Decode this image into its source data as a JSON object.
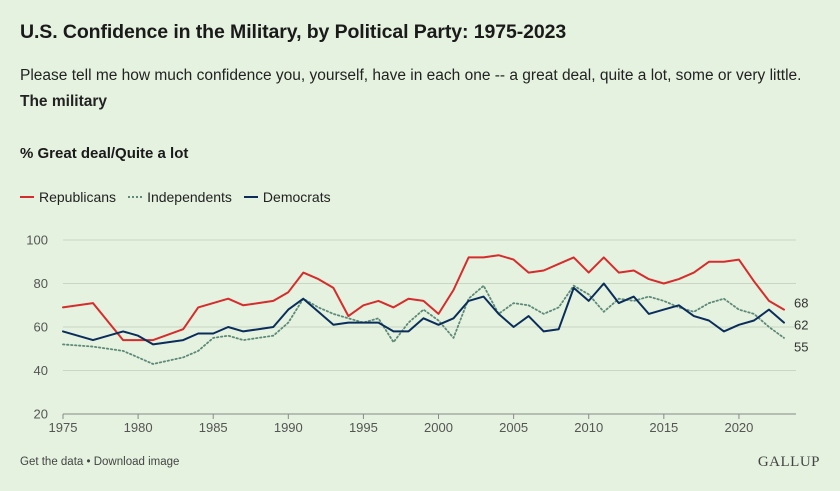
{
  "title": "U.S. Confidence in the Military, by Political Party: 1975-2023",
  "subtitle": "Please tell me how much confidence you, yourself, have in each one -- a great deal, quite a lot, some or very little.",
  "subtitle_bold": "The military",
  "measure_label": "% Great deal/Quite a lot",
  "footer": {
    "get_data": "Get the data",
    "separator": "•",
    "download": "Download image",
    "brand": "GALLUP"
  },
  "chart_data": {
    "type": "line",
    "title": "U.S. Confidence in the Military, by Political Party: 1975-2023",
    "ylabel": "% Great deal/Quite a lot",
    "xlabel": "",
    "xlim": [
      1975,
      2023
    ],
    "ylim": [
      20,
      100
    ],
    "x_ticks": [
      1975,
      1980,
      1985,
      1990,
      1995,
      2000,
      2005,
      2010,
      2015,
      2020
    ],
    "y_ticks": [
      20,
      40,
      60,
      80,
      100
    ],
    "grid": "horizontal",
    "legend_position": "top-left",
    "series": [
      {
        "name": "Republicans",
        "color": "#d62c2c",
        "style": "solid",
        "end_label": "68",
        "points": [
          [
            1975,
            69
          ],
          [
            1977,
            71
          ],
          [
            1979,
            54
          ],
          [
            1980,
            54
          ],
          [
            1981,
            54
          ],
          [
            1983,
            59
          ],
          [
            1984,
            69
          ],
          [
            1985,
            71
          ],
          [
            1986,
            73
          ],
          [
            1987,
            70
          ],
          [
            1988,
            71
          ],
          [
            1989,
            72
          ],
          [
            1990,
            76
          ],
          [
            1991,
            85
          ],
          [
            1992,
            82
          ],
          [
            1993,
            78
          ],
          [
            1994,
            65
          ],
          [
            1995,
            70
          ],
          [
            1996,
            72
          ],
          [
            1997,
            69
          ],
          [
            1998,
            73
          ],
          [
            1999,
            72
          ],
          [
            2000,
            66
          ],
          [
            2001,
            77
          ],
          [
            2002,
            92
          ],
          [
            2003,
            92
          ],
          [
            2004,
            93
          ],
          [
            2005,
            91
          ],
          [
            2006,
            85
          ],
          [
            2007,
            86
          ],
          [
            2008,
            89
          ],
          [
            2009,
            92
          ],
          [
            2010,
            85
          ],
          [
            2011,
            92
          ],
          [
            2012,
            85
          ],
          [
            2013,
            86
          ],
          [
            2014,
            82
          ],
          [
            2015,
            80
          ],
          [
            2016,
            82
          ],
          [
            2017,
            85
          ],
          [
            2018,
            90
          ],
          [
            2019,
            90
          ],
          [
            2020,
            91
          ],
          [
            2021,
            81
          ],
          [
            2022,
            72
          ],
          [
            2023,
            68
          ]
        ]
      },
      {
        "name": "Independents",
        "color": "#5e8a7a",
        "style": "dotted",
        "end_label": "55",
        "points": [
          [
            1975,
            52
          ],
          [
            1977,
            51
          ],
          [
            1979,
            49
          ],
          [
            1980,
            46
          ],
          [
            1981,
            43
          ],
          [
            1983,
            46
          ],
          [
            1984,
            49
          ],
          [
            1985,
            55
          ],
          [
            1986,
            56
          ],
          [
            1987,
            54
          ],
          [
            1988,
            55
          ],
          [
            1989,
            56
          ],
          [
            1990,
            62
          ],
          [
            1991,
            73
          ],
          [
            1992,
            69
          ],
          [
            1993,
            66
          ],
          [
            1994,
            64
          ],
          [
            1995,
            62
          ],
          [
            1996,
            64
          ],
          [
            1997,
            53
          ],
          [
            1998,
            62
          ],
          [
            1999,
            68
          ],
          [
            2000,
            63
          ],
          [
            2001,
            55
          ],
          [
            2002,
            73
          ],
          [
            2003,
            79
          ],
          [
            2004,
            66
          ],
          [
            2005,
            71
          ],
          [
            2006,
            70
          ],
          [
            2007,
            66
          ],
          [
            2008,
            69
          ],
          [
            2009,
            79
          ],
          [
            2010,
            75
          ],
          [
            2011,
            67
          ],
          [
            2012,
            73
          ],
          [
            2013,
            72
          ],
          [
            2014,
            74
          ],
          [
            2015,
            72
          ],
          [
            2016,
            69
          ],
          [
            2017,
            67
          ],
          [
            2018,
            71
          ],
          [
            2019,
            73
          ],
          [
            2020,
            68
          ],
          [
            2021,
            66
          ],
          [
            2022,
            60
          ],
          [
            2023,
            55
          ]
        ]
      },
      {
        "name": "Democrats",
        "color": "#0b2d5b",
        "style": "solid",
        "end_label": "62",
        "points": [
          [
            1975,
            58
          ],
          [
            1977,
            54
          ],
          [
            1979,
            58
          ],
          [
            1980,
            56
          ],
          [
            1981,
            52
          ],
          [
            1983,
            54
          ],
          [
            1984,
            57
          ],
          [
            1985,
            57
          ],
          [
            1986,
            60
          ],
          [
            1987,
            58
          ],
          [
            1988,
            59
          ],
          [
            1989,
            60
          ],
          [
            1990,
            68
          ],
          [
            1991,
            73
          ],
          [
            1992,
            67
          ],
          [
            1993,
            61
          ],
          [
            1994,
            62
          ],
          [
            1995,
            62
          ],
          [
            1996,
            62
          ],
          [
            1997,
            58
          ],
          [
            1998,
            58
          ],
          [
            1999,
            64
          ],
          [
            2000,
            61
          ],
          [
            2001,
            64
          ],
          [
            2002,
            72
          ],
          [
            2003,
            74
          ],
          [
            2004,
            66
          ],
          [
            2005,
            60
          ],
          [
            2006,
            65
          ],
          [
            2007,
            58
          ],
          [
            2008,
            59
          ],
          [
            2009,
            78
          ],
          [
            2010,
            72
          ],
          [
            2011,
            80
          ],
          [
            2012,
            71
          ],
          [
            2013,
            74
          ],
          [
            2014,
            66
          ],
          [
            2015,
            68
          ],
          [
            2016,
            70
          ],
          [
            2017,
            65
          ],
          [
            2018,
            63
          ],
          [
            2019,
            58
          ],
          [
            2020,
            61
          ],
          [
            2021,
            63
          ],
          [
            2022,
            68
          ],
          [
            2023,
            62
          ]
        ]
      }
    ]
  }
}
